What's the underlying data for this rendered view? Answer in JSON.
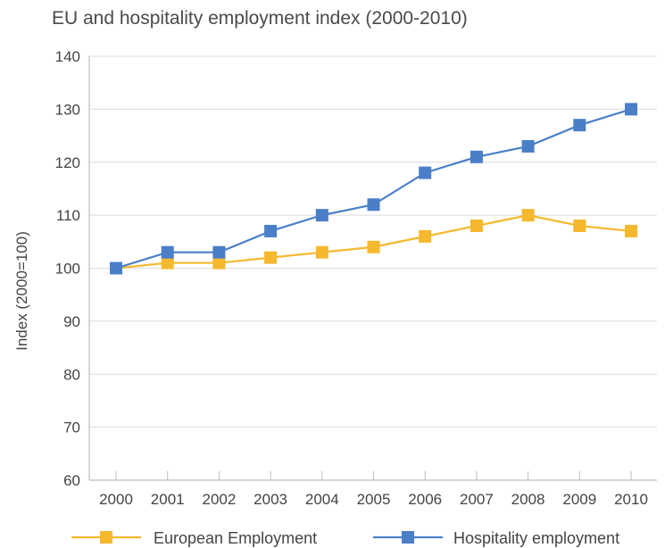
{
  "chart_data": {
    "type": "line",
    "title": "EU and hospitality employment index (2000-2010)",
    "xlabel": "",
    "ylabel": "Index (2000=100)",
    "x": [
      "2000",
      "2001",
      "2002",
      "2003",
      "2004",
      "2005",
      "2006",
      "2007",
      "2008",
      "2009",
      "2010"
    ],
    "ylim": [
      60,
      140
    ],
    "yticks": [
      60,
      70,
      80,
      90,
      100,
      110,
      120,
      130,
      140
    ],
    "grid": true,
    "legend": "bottom",
    "series": [
      {
        "name": "European Employment",
        "color": "#f5b82e",
        "values": [
          100,
          101,
          101,
          102,
          103,
          104,
          106,
          108,
          110,
          108,
          107
        ]
      },
      {
        "name": "Hospitality employment",
        "color": "#4a7fc8",
        "values": [
          100,
          103,
          103,
          107,
          110,
          112,
          118,
          121,
          123,
          127,
          130
        ]
      }
    ]
  }
}
